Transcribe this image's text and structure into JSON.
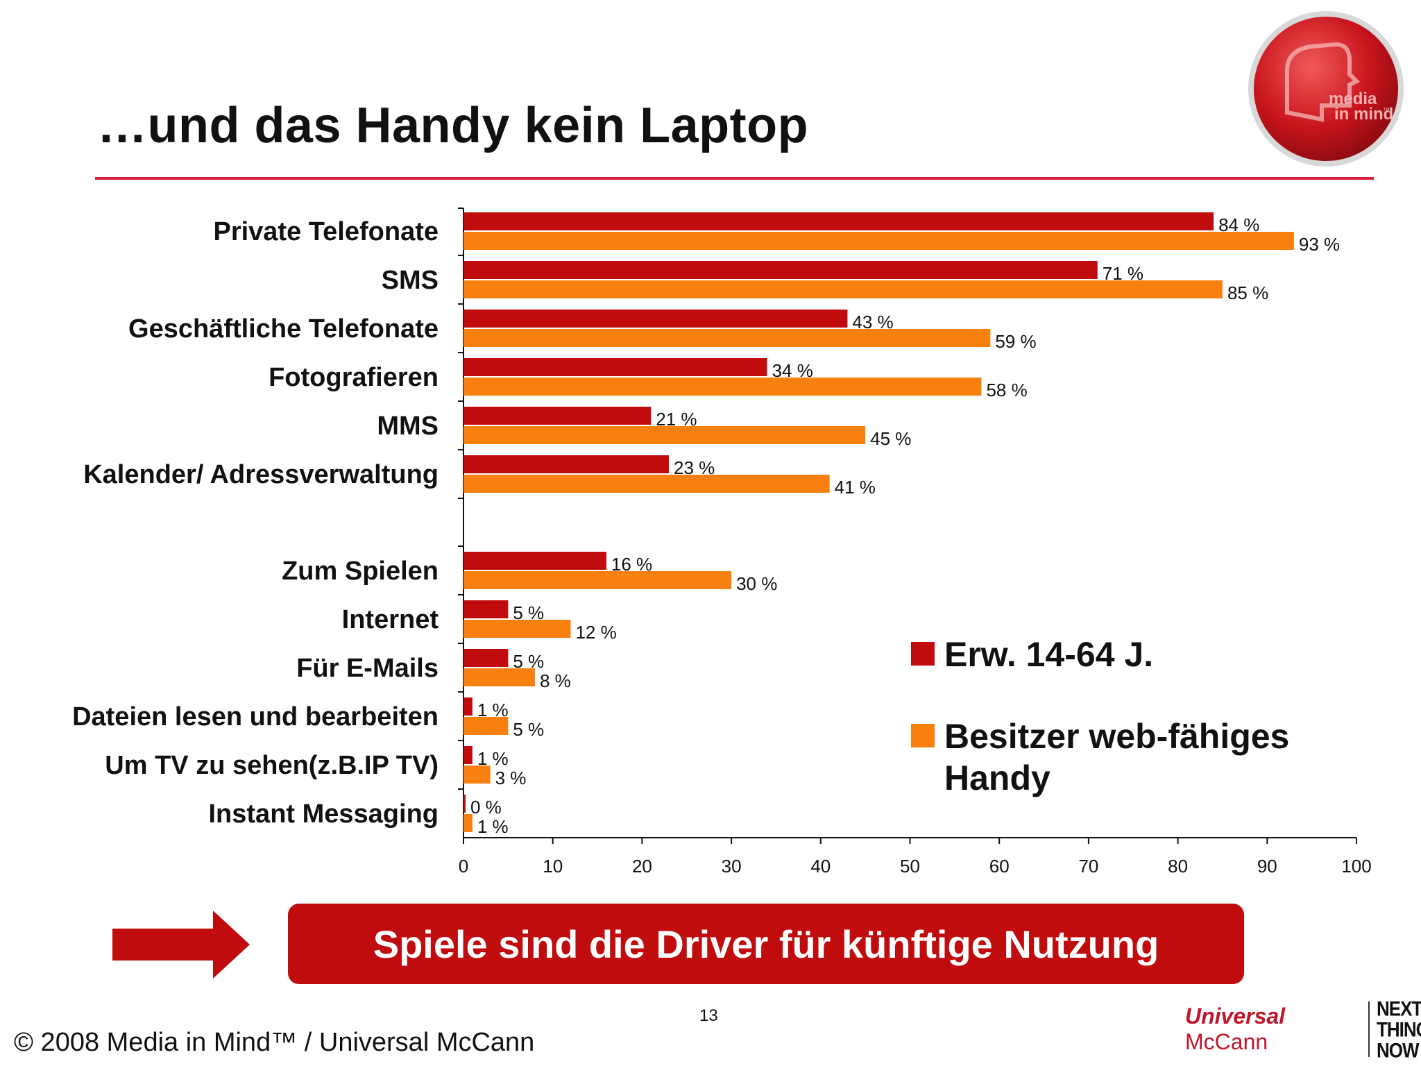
{
  "title": "…und das Handy kein Laptop",
  "logo": {
    "text_line1": "media",
    "text_line2": "in mind",
    "tm": "™"
  },
  "colors": {
    "adults": "#c00c0c",
    "web_owners": "#f7800f",
    "accent_rule": "#d0213f"
  },
  "chart_data": {
    "type": "bar",
    "orientation": "horizontal",
    "categories": [
      "Private Telefonate",
      "SMS",
      "Geschäftliche Telefonate",
      "Fotografieren",
      "MMS",
      "Kalender/ Adressverwaltung",
      "Zum Spielen",
      "Internet",
      "Für E-Mails",
      "Dateien lesen und bearbeiten",
      "Um TV zu sehen(z.B.IP TV)",
      "Instant Messaging"
    ],
    "series": [
      {
        "name": "Erw. 14-64 J.",
        "color": "#c00c0c",
        "values": [
          84,
          71,
          43,
          34,
          21,
          23,
          16,
          5,
          5,
          1,
          1,
          0
        ]
      },
      {
        "name": "Besitzer web-fähiges Handy",
        "color": "#f7800f",
        "values": [
          93,
          85,
          59,
          58,
          45,
          41,
          30,
          12,
          8,
          5,
          3,
          1
        ]
      }
    ],
    "value_suffix": " %",
    "xlim": [
      0,
      100
    ],
    "xticks": [
      "0",
      "10",
      "20",
      "30",
      "40",
      "50",
      "60",
      "70",
      "80",
      "90",
      "100"
    ],
    "legend_position": "lower-right",
    "grid": false
  },
  "callout": {
    "text": "Spiele sind die Driver für künftige Nutzung"
  },
  "page_number": "13",
  "copyright": "© 2008 Media in Mind™ / Universal McCann",
  "brand": {
    "name_italic": "Universal",
    "name_rest": " McCann",
    "tagline": "NEXT THING NOW"
  }
}
